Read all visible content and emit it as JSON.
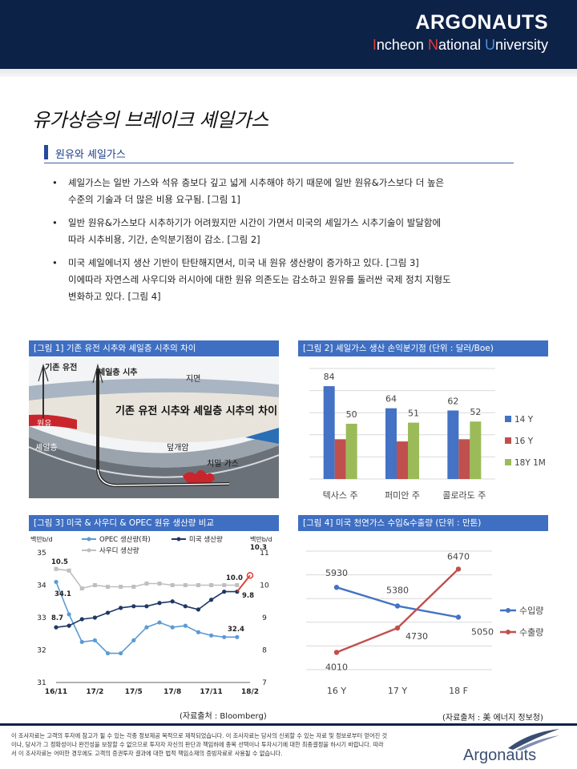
{
  "header": {
    "brand": "ARGONAUTS",
    "uni_i": "I",
    "uni_1": "ncheon ",
    "uni_n": "N",
    "uni_2": "ational ",
    "uni_u": "U",
    "uni_3": "niversity"
  },
  "title": "유가상승의 브레이크 셰일가스",
  "section": "원유와 셰일가스",
  "bullets": [
    [
      "셰일가스는 일반 가스와 석유 층보다 깊고 넓게 시추해야 하기 때문에 일반 원유&가스보다 더 높은",
      "수준의 기술과 더 많은 비용 요구됨. [그림 1]"
    ],
    [
      "일반 원유&가스보다 시추하기가 어려웠지만 시간이 가면서 미국의 셰일가스 시추기술이 발달함에",
      "따라 시추비용, 기간, 손익분기점이 감소. [그림 2]"
    ],
    [
      "미국 셰일에너지 생산 기반이 탄탄해지면서, 미국 내 원유 생산량이 증가하고 있다. [그림 3]",
      "이에따라 자연스레 사우디와 러시아에 대한 원유 의존도는 감소하고 원유를 둘러싼 국제 정치 지형도",
      "변화하고 있다. [그림 4]"
    ]
  ],
  "fig1": {
    "title": "[그림 1] 기존 유전 시추와 셰일층 시추의 차이",
    "label_conv": "기존 유전",
    "label_shale": "셰일층 시추",
    "label_ground": "지면",
    "caption": "기존 유전 시추와 셰일층 시추의 차이",
    "label_oil": "원유",
    "label_shalelayer": "셰일층",
    "label_cap": "덮개암",
    "label_gas": "치밀 가스"
  },
  "fig2": {
    "title": "[그림 2] 셰일가스 생산 손익분기점 (단위 : 달러/Boe)",
    "chart_data": {
      "type": "bar",
      "categories": [
        "텍사스 주",
        "퍼미안 주",
        "콜로라도 주"
      ],
      "series": [
        {
          "name": "14 Y",
          "values": [
            84,
            64,
            62
          ],
          "color": "#4472c4"
        },
        {
          "name": "16 Y",
          "values": [
            36,
            34,
            36
          ],
          "color": "#c0504d"
        },
        {
          "name": "18Y 1M",
          "values": [
            50,
            51,
            52
          ],
          "color": "#9bbb59"
        }
      ],
      "labels_series": 0,
      "labels_shown": [
        [
          84,
          64,
          62
        ],
        [],
        [
          50,
          51,
          52
        ]
      ],
      "ylim": [
        0,
        100
      ],
      "grid": true,
      "legend": "right"
    }
  },
  "fig3": {
    "title": "[그림 3] 미국 & 사우디 & OPEC 원유 생산량 비교",
    "chart_data": {
      "type": "line",
      "left_unit": "백만b/d",
      "right_unit": "백만b/d",
      "x_ticks": [
        "16/11",
        "17/2",
        "17/5",
        "17/8",
        "17/11",
        "18/2"
      ],
      "left_ylim": [
        31,
        35
      ],
      "left_ticks": [
        "35",
        "34",
        "33",
        "32",
        "31"
      ],
      "right_ylim": [
        7,
        11
      ],
      "right_ticks": [
        "11",
        "10",
        "9",
        "8",
        "7"
      ],
      "series": [
        {
          "name": "OPEC 생산량(좌)",
          "axis": "left",
          "color": "#5b9bd5",
          "style": "dot",
          "values": [
            34.1,
            33.1,
            32.25,
            32.3,
            31.9,
            31.9,
            32.3,
            32.7,
            32.85,
            32.7,
            32.75,
            32.55,
            32.45,
            32.4,
            32.4
          ]
        },
        {
          "name": "미국 생산량",
          "axis": "right",
          "color": "#1f3864",
          "style": "dot",
          "values": [
            8.7,
            8.75,
            8.95,
            9.0,
            9.15,
            9.3,
            9.35,
            9.35,
            9.45,
            9.5,
            9.35,
            9.25,
            9.55,
            9.8,
            9.8,
            10.3
          ]
        },
        {
          "name": "사우디 생산량",
          "axis": "right",
          "color": "#bfbfbf",
          "style": "square",
          "values": [
            10.5,
            10.45,
            9.9,
            10.0,
            9.95,
            9.95,
            9.95,
            10.05,
            10.05,
            10.0,
            10.0,
            10.0,
            10.0,
            10.0,
            10.0
          ]
        }
      ],
      "annotations": [
        "10.5",
        "34.1",
        "8.7",
        "10.0",
        "10.3",
        "9.8",
        "32.4"
      ]
    }
  },
  "fig4": {
    "title": "[그림 4] 미국 천연가스 수입&수출량 (단위 : 만톤)",
    "chart_data": {
      "type": "line",
      "categories": [
        "16 Y",
        "17 Y",
        "18 F"
      ],
      "series": [
        {
          "name": "수입량",
          "values": [
            5930,
            5380,
            5050
          ],
          "color": "#4472c4"
        },
        {
          "name": "수출량",
          "values": [
            4010,
            4730,
            6470
          ],
          "color": "#c0504d"
        }
      ],
      "ylim": [
        3500,
        7000
      ],
      "grid": true,
      "legend": "right"
    }
  },
  "source_bloomberg": "(자료출처 : Bloomberg)",
  "source_energy": "(자료출처 : 美 에너지 정보청)",
  "disclaimer": [
    "이 조사자료는 고객의 투자에 참고가 될 수 있는 각종 정보제공 목적으로 제작되었습니다. 이 조사자료는 당사의 신뢰할 수 있는 자료 및 정보로부터 얻어진 것",
    "이나, 당사가 그 정확성이나 완전성을 보장할 수 없으므로 투자자 자신의 판단과 책임하에 종목 선택이나 투자시기에 대한 최종결정을 하시기 바랍니다. 따라",
    "서 이 조사자료는 어떠한 경우에도 고객의 증권투자 결과에 대한 법적 책임소재의 증빙자료로 사용될 수 없습니다."
  ],
  "footer_logo": "Argonauts"
}
